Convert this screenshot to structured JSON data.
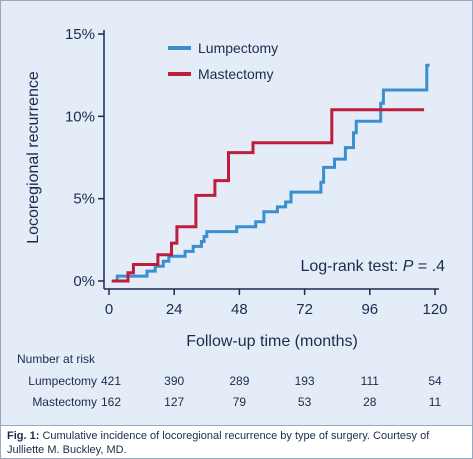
{
  "chart_data": {
    "type": "line",
    "step": true,
    "xlabel": "Follow-up time (months)",
    "ylabel": "Locoregional recurrence",
    "xlim": [
      0,
      120
    ],
    "ylim": [
      0,
      15
    ],
    "x_ticks": [
      0,
      24,
      48,
      72,
      96,
      120
    ],
    "x_tick_labels": [
      "0",
      "24",
      "48",
      "72",
      "96",
      "120"
    ],
    "y_ticks": [
      0,
      5,
      10,
      15
    ],
    "y_tick_labels": [
      "0%",
      "5%",
      "10%",
      "15%"
    ],
    "grid": false,
    "legend_position": "top-center",
    "annotation": {
      "prefix": "Log-rank test: ",
      "italic": "P",
      "suffix": " = .4"
    },
    "series": [
      {
        "name": "Lumpectomy",
        "color": "#3a8fd0",
        "points": [
          [
            2,
            0
          ],
          [
            3,
            0.3
          ],
          [
            13,
            0.3
          ],
          [
            14,
            0.6
          ],
          [
            16,
            0.6
          ],
          [
            17,
            0.9
          ],
          [
            19,
            0.9
          ],
          [
            20,
            1.2
          ],
          [
            21,
            1.2
          ],
          [
            22,
            1.5
          ],
          [
            27,
            1.5
          ],
          [
            28,
            1.8
          ],
          [
            30,
            1.8
          ],
          [
            31,
            2.1
          ],
          [
            33,
            2.1
          ],
          [
            34,
            2.4
          ],
          [
            35,
            2.7
          ],
          [
            36,
            3.0
          ],
          [
            46,
            3.0
          ],
          [
            47,
            3.3
          ],
          [
            53,
            3.3
          ],
          [
            54,
            3.6
          ],
          [
            56,
            3.6
          ],
          [
            57,
            4.2
          ],
          [
            61,
            4.2
          ],
          [
            62,
            4.5
          ],
          [
            64,
            4.5
          ],
          [
            65,
            4.8
          ],
          [
            66,
            4.8
          ],
          [
            67,
            5.4
          ],
          [
            77,
            5.4
          ],
          [
            78,
            6.0
          ],
          [
            79,
            6.9
          ],
          [
            82,
            6.9
          ],
          [
            83,
            7.4
          ],
          [
            86,
            7.4
          ],
          [
            87,
            8.1
          ],
          [
            89,
            8.1
          ],
          [
            90,
            9.0
          ],
          [
            91,
            9.7
          ],
          [
            99,
            9.7
          ],
          [
            100,
            10.8
          ],
          [
            101,
            11.6
          ],
          [
            116,
            11.6
          ],
          [
            117,
            13.1
          ],
          [
            118,
            13.1
          ]
        ]
      },
      {
        "name": "Mastectomy",
        "color": "#be1e3c",
        "points": [
          [
            1,
            0
          ],
          [
            6,
            0
          ],
          [
            7,
            0.5
          ],
          [
            8,
            0.5
          ],
          [
            9,
            1.0
          ],
          [
            17,
            1.0
          ],
          [
            18,
            1.6
          ],
          [
            22,
            1.6
          ],
          [
            23,
            2.3
          ],
          [
            24,
            2.3
          ],
          [
            25,
            3.3
          ],
          [
            31,
            3.3
          ],
          [
            32,
            5.2
          ],
          [
            38,
            5.2
          ],
          [
            39,
            6.1
          ],
          [
            43,
            6.1
          ],
          [
            44,
            7.8
          ],
          [
            52,
            7.8
          ],
          [
            53,
            8.4
          ],
          [
            81,
            8.4
          ],
          [
            82,
            10.4
          ],
          [
            116,
            10.4
          ]
        ]
      }
    ]
  },
  "risk_table": {
    "title": "Number at risk",
    "rows": [
      {
        "label": "Lumpectomy",
        "values": [
          "421",
          "390",
          "289",
          "193",
          "111",
          "54"
        ]
      },
      {
        "label": "Mastectomy",
        "values": [
          "162",
          "127",
          "79",
          "53",
          "28",
          "11"
        ]
      }
    ]
  },
  "caption": {
    "label": "Fig. 1:",
    "text": " Cumulative incidence of locoregional recurrence by type of surgery. Courtesy of Julliette M. Buckley, MD."
  }
}
